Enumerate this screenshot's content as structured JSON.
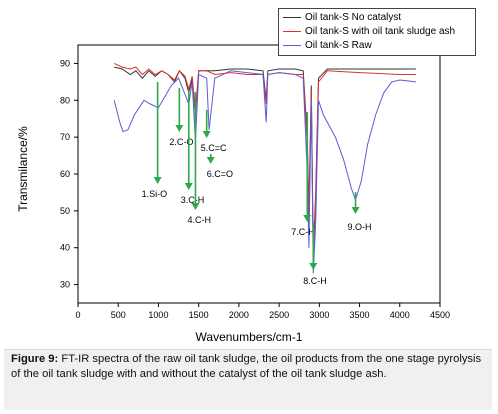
{
  "chart_data": {
    "type": "line",
    "xlabel": "Wavenumbers/cm-1",
    "ylabel": "Transmilance/%",
    "xlim": [
      0,
      4500
    ],
    "ylim": [
      25,
      95
    ],
    "xticks": [
      0,
      500,
      1000,
      1500,
      2000,
      2500,
      3000,
      3500,
      4000,
      4500
    ],
    "yticks": [
      30,
      40,
      50,
      60,
      70,
      80,
      90
    ],
    "legend_position": "top-right",
    "series": [
      {
        "name": "Oil tank-S No catalyst",
        "color": "#333333",
        "points": [
          [
            450,
            89
          ],
          [
            550,
            88.5
          ],
          [
            650,
            87
          ],
          [
            720,
            88
          ],
          [
            800,
            86
          ],
          [
            880,
            88
          ],
          [
            960,
            86.5
          ],
          [
            1040,
            88
          ],
          [
            1120,
            87
          ],
          [
            1200,
            85
          ],
          [
            1260,
            88
          ],
          [
            1330,
            86
          ],
          [
            1377,
            82
          ],
          [
            1420,
            86
          ],
          [
            1460,
            76
          ],
          [
            1500,
            88
          ],
          [
            1600,
            88
          ],
          [
            1700,
            88
          ],
          [
            1900,
            88.5
          ],
          [
            2100,
            88.5
          ],
          [
            2300,
            88
          ],
          [
            2340,
            80
          ],
          [
            2360,
            88
          ],
          [
            2500,
            88.5
          ],
          [
            2700,
            88.5
          ],
          [
            2800,
            88
          ],
          [
            2850,
            70
          ],
          [
            2870,
            50
          ],
          [
            2900,
            84
          ],
          [
            2925,
            38
          ],
          [
            2955,
            55
          ],
          [
            2990,
            86
          ],
          [
            3100,
            88.5
          ],
          [
            3500,
            88.5
          ],
          [
            4000,
            88.5
          ],
          [
            4200,
            88.5
          ]
        ]
      },
      {
        "name": "Oil tank-S with oil tank sludge ash",
        "color": "#e0302c",
        "points": [
          [
            450,
            90
          ],
          [
            550,
            89
          ],
          [
            650,
            88.5
          ],
          [
            720,
            89
          ],
          [
            800,
            87
          ],
          [
            880,
            88.5
          ],
          [
            960,
            87
          ],
          [
            1040,
            88
          ],
          [
            1120,
            87
          ],
          [
            1200,
            85.5
          ],
          [
            1260,
            88
          ],
          [
            1330,
            86.5
          ],
          [
            1377,
            83
          ],
          [
            1420,
            86.5
          ],
          [
            1460,
            77
          ],
          [
            1500,
            88
          ],
          [
            1600,
            88
          ],
          [
            1700,
            87
          ],
          [
            1900,
            87.5
          ],
          [
            2100,
            87
          ],
          [
            2300,
            87
          ],
          [
            2340,
            79
          ],
          [
            2360,
            87
          ],
          [
            2500,
            87.5
          ],
          [
            2700,
            87
          ],
          [
            2800,
            87
          ],
          [
            2850,
            68
          ],
          [
            2870,
            48
          ],
          [
            2900,
            83
          ],
          [
            2925,
            36
          ],
          [
            2955,
            53
          ],
          [
            2990,
            85
          ],
          [
            3100,
            88
          ],
          [
            3500,
            87.5
          ],
          [
            4000,
            87
          ],
          [
            4200,
            87
          ]
        ]
      },
      {
        "name": "Oil tank-S Raw",
        "color": "#5b5bd6",
        "points": [
          [
            450,
            80
          ],
          [
            520,
            74
          ],
          [
            560,
            71.5
          ],
          [
            620,
            72
          ],
          [
            700,
            76
          ],
          [
            760,
            78
          ],
          [
            820,
            80
          ],
          [
            900,
            79
          ],
          [
            1000,
            78
          ],
          [
            1080,
            81
          ],
          [
            1160,
            84
          ],
          [
            1250,
            86
          ],
          [
            1377,
            79
          ],
          [
            1420,
            85
          ],
          [
            1460,
            69
          ],
          [
            1500,
            87
          ],
          [
            1600,
            86
          ],
          [
            1630,
            72
          ],
          [
            1700,
            86
          ],
          [
            1900,
            88
          ],
          [
            2100,
            87.5
          ],
          [
            2300,
            87
          ],
          [
            2340,
            74
          ],
          [
            2360,
            87
          ],
          [
            2500,
            87.5
          ],
          [
            2700,
            87
          ],
          [
            2800,
            86
          ],
          [
            2850,
            60
          ],
          [
            2870,
            40
          ],
          [
            2900,
            80
          ],
          [
            2925,
            33
          ],
          [
            2955,
            47
          ],
          [
            2990,
            80
          ],
          [
            3050,
            76
          ],
          [
            3200,
            70
          ],
          [
            3300,
            64
          ],
          [
            3400,
            56
          ],
          [
            3450,
            53
          ],
          [
            3520,
            58
          ],
          [
            3600,
            68
          ],
          [
            3700,
            76
          ],
          [
            3800,
            82
          ],
          [
            3900,
            85
          ],
          [
            4000,
            85.5
          ],
          [
            4200,
            85
          ]
        ]
      }
    ],
    "annotations": [
      {
        "label": "1.Si-O",
        "x": 990
      },
      {
        "label": "2.C-O",
        "x": 1260
      },
      {
        "label": "3.C-H",
        "x": 1377
      },
      {
        "label": "4.C-H",
        "x": 1460
      },
      {
        "label": "5.C=C",
        "x": 1600
      },
      {
        "label": "6.C=O",
        "x": 1650
      },
      {
        "label": "7.C-H",
        "x": 2850
      },
      {
        "label": "8.C-H",
        "x": 2925
      },
      {
        "label": "9.O-H",
        "x": 3450
      }
    ]
  },
  "caption": {
    "figure_label": "Figure 9:",
    "text": " FT-IR spectra of the raw oil tank sludge, the oil products from the one stage pyrolysis of the oil tank sludge with and without the catalyst of the oil tank sludge ash."
  }
}
